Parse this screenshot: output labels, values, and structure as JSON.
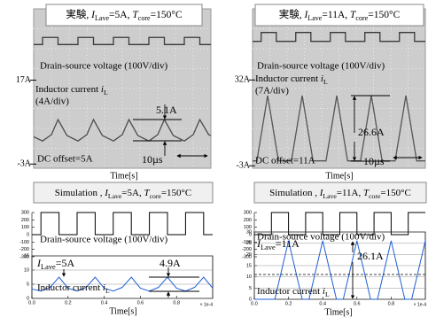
{
  "chart_data": [
    {
      "type": "line",
      "title_parts": [
        "実験, ",
        "I",
        "Lave",
        "=5A, ",
        "T",
        "core",
        "=150°C"
      ],
      "xlabel": "Time[s]",
      "xlim": [
        0,
        80
      ],
      "ylim": [
        -4,
        34
      ],
      "y2lim": [
        -5200,
        1500
      ],
      "yticks": [
        {
          "value": 17,
          "label": "17A"
        },
        {
          "value": -3,
          "label": "-3A"
        }
      ],
      "grid": false,
      "series": [
        {
          "color": "#3a3a3a",
          "axis": "y2",
          "x": [
            0,
            4,
            4,
            11,
            11,
            20,
            20,
            27,
            27,
            36,
            36,
            43,
            43,
            52,
            52,
            59,
            59,
            68,
            68,
            75,
            75,
            80
          ],
          "values": [
            0,
            0,
            300,
            300,
            0,
            0,
            300,
            300,
            0,
            0,
            300,
            300,
            0,
            0,
            300,
            300,
            0,
            0,
            300,
            300,
            0,
            0
          ]
        },
        {
          "color": "#4a4a4a",
          "x": [
            0,
            4,
            8,
            11,
            15,
            20,
            24,
            27,
            31,
            36,
            40,
            43,
            47,
            52,
            56,
            59,
            63,
            68,
            72,
            75,
            79,
            80
          ],
          "values": [
            3.5,
            2.5,
            4.0,
            7.6,
            3.8,
            2.5,
            4.0,
            7.6,
            3.8,
            2.5,
            4.0,
            7.6,
            3.8,
            2.5,
            4.0,
            7.6,
            3.8,
            2.5,
            4.0,
            7.6,
            4.0,
            3.8
          ]
        }
      ],
      "annotations": {
        "voltage_label": "Drain-source voltage  (100V/div)",
        "current_label": [
          "Inductor current ",
          "i",
          "L"
        ],
        "current_scale": "(4A/div)",
        "ripple": "5.1A",
        "offset": "DC offset=5A",
        "time_scale": "10µs"
      }
    },
    {
      "type": "line",
      "title_parts": [
        "実験, ",
        "I",
        "Lave",
        "=11A, ",
        "T",
        "core",
        "=150°C"
      ],
      "xlabel": "Time[s]",
      "xlim": [
        0,
        80
      ],
      "ylim": [
        -4,
        61
      ],
      "y2lim": [
        -4300,
        1100
      ],
      "yticks": [
        {
          "value": 32,
          "label": "32A"
        },
        {
          "value": -3,
          "label": "-3A"
        }
      ],
      "grid": false,
      "series": [
        {
          "color": "#3a3a3a",
          "axis": "y2",
          "x": [
            0,
            4,
            4,
            11,
            11,
            20,
            20,
            27,
            27,
            36,
            36,
            43,
            43,
            52,
            52,
            59,
            59,
            68,
            68,
            75,
            75,
            80
          ],
          "values": [
            0,
            0,
            300,
            300,
            0,
            0,
            300,
            300,
            0,
            0,
            300,
            300,
            0,
            0,
            300,
            300,
            0,
            0,
            300,
            300,
            0,
            0
          ]
        },
        {
          "color": "#555555",
          "x": [
            0,
            2,
            7,
            12,
            18,
            23,
            28,
            34,
            39,
            44,
            50,
            55,
            60,
            66,
            71,
            76,
            80
          ],
          "values": [
            -1,
            -1,
            25.6,
            -1,
            -1,
            25.6,
            -1,
            -1,
            25.6,
            -1,
            -1,
            25.6,
            -1,
            -1,
            25.6,
            -1,
            -1
          ]
        }
      ],
      "annotations": {
        "voltage_label": "Drain-source voltage  (100V/div)",
        "current_label": [
          "Inductor current ",
          "i",
          "L"
        ],
        "current_scale": "(7A/div)",
        "ripple": "26.6A",
        "offset": "DC offset=11A",
        "time_scale": "10µs"
      }
    },
    {
      "type": "line",
      "title_parts": [
        "Simulation , ",
        "I",
        "Lave",
        "=5A, ",
        "T",
        "core",
        "=150°C"
      ],
      "xlim": [
        0,
        1
      ],
      "ylim": [
        -300,
        300
      ],
      "yticks": [
        300,
        200,
        100,
        0,
        -100,
        -200,
        -300
      ],
      "grid": false,
      "series": [
        {
          "color": "#000000",
          "x": [
            0,
            0.05,
            0.05,
            0.15,
            0.15,
            0.25,
            0.25,
            0.35,
            0.35,
            0.45,
            0.45,
            0.55,
            0.55,
            0.65,
            0.65,
            0.75,
            0.75,
            0.85,
            0.85,
            0.95,
            0.95,
            1.0
          ],
          "values": [
            0,
            0,
            300,
            300,
            0,
            0,
            300,
            300,
            0,
            0,
            300,
            300,
            0,
            0,
            300,
            300,
            0,
            0,
            300,
            300,
            0,
            0
          ]
        }
      ],
      "annotations": {
        "voltage_label": "Drain-source voltage (100V/div)"
      }
    },
    {
      "type": "line",
      "xlabel": "Time[s]",
      "x_multiplier": "× 1e-4",
      "xlim": [
        0,
        1
      ],
      "xticks": [
        {
          "value": 0,
          "label": "0.0"
        },
        0.2,
        0.4,
        0.6,
        0.8
      ],
      "ylim": [
        0,
        15
      ],
      "yticks": [
        0,
        5,
        10,
        15
      ],
      "grid": true,
      "series": [
        {
          "color": "#1f5fd6",
          "x": [
            0,
            0.05,
            0.1,
            0.15,
            0.2,
            0.25,
            0.3,
            0.35,
            0.4,
            0.45,
            0.5,
            0.55,
            0.6,
            0.65,
            0.7,
            0.75,
            0.8,
            0.85,
            0.9,
            0.95,
            1.0
          ],
          "values": [
            3.3,
            2.6,
            3.9,
            7.5,
            3.6,
            2.6,
            3.9,
            7.5,
            3.6,
            2.6,
            3.9,
            7.5,
            3.6,
            2.6,
            3.9,
            7.5,
            3.6,
            2.6,
            3.9,
            7.5,
            3.6
          ]
        }
      ],
      "annotations": {
        "average": [
          "I",
          "Lave",
          "=5A"
        ],
        "ripple": "4.9A",
        "current_label": [
          "Inductor current ",
          "i",
          "L"
        ]
      }
    },
    {
      "type": "line",
      "title_parts": [
        "Simulation , ",
        "I",
        "Lave",
        "=11A, ",
        "T",
        "core",
        "=150°C"
      ],
      "xlim": [
        0,
        1
      ],
      "ylim": [
        -300,
        300
      ],
      "yticks": [
        300,
        200,
        100,
        0,
        -100,
        -200,
        -300
      ],
      "grid": false,
      "series": [
        {
          "color": "#000000",
          "x": [
            0,
            0.1,
            0.1,
            0.2,
            0.2,
            0.3,
            0.3,
            0.4,
            0.4,
            0.5,
            0.5,
            0.6,
            0.6,
            0.7,
            0.7,
            0.8,
            0.8,
            0.9,
            0.9,
            1.0
          ],
          "values": [
            0,
            0,
            300,
            300,
            0,
            0,
            300,
            300,
            0,
            0,
            300,
            300,
            0,
            0,
            300,
            300,
            0,
            0,
            300,
            300
          ]
        }
      ],
      "annotations": {
        "voltage_label": "Drain-source voltage (100V/div)"
      }
    },
    {
      "type": "line",
      "xlabel": "Time[s]",
      "x_multiplier": "× 1e-4",
      "xlim": [
        0,
        1
      ],
      "xticks": [
        {
          "value": 0,
          "label": "0.0"
        },
        0.2,
        0.4,
        0.6,
        0.8
      ],
      "ylim": [
        0,
        30
      ],
      "yticks": [
        0,
        5,
        10,
        15,
        20,
        25,
        30
      ],
      "grid": true,
      "series": [
        {
          "color": "#1f5fd6",
          "x": [
            0,
            0.12,
            0.2,
            0.28,
            0.32,
            0.4,
            0.48,
            0.52,
            0.6,
            0.68,
            0.72,
            0.8,
            0.88,
            0.92,
            1.0
          ],
          "values": [
            0,
            0,
            26.1,
            0,
            0,
            26.1,
            0,
            0,
            26.1,
            0,
            0,
            26.1,
            0,
            0,
            26.1
          ]
        }
      ],
      "annotations": {
        "average": [
          "I",
          "Lave",
          "=11A"
        ],
        "ripple": "26.1A",
        "current_label": [
          "Inductor current ",
          "i",
          "L"
        ]
      }
    }
  ]
}
